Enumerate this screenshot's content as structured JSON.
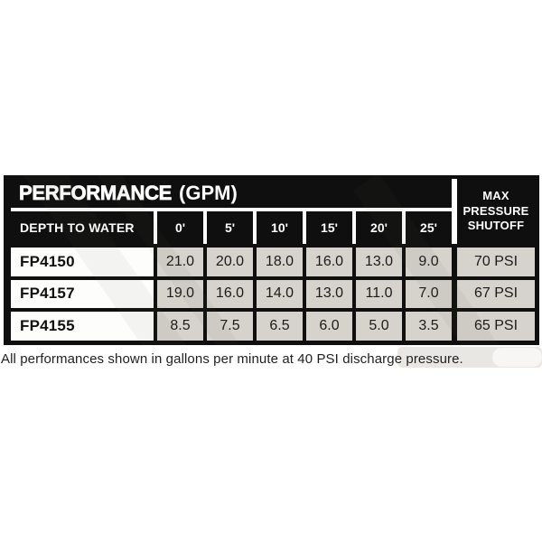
{
  "table": {
    "title": "PERFORMANCE",
    "title_suffix": "(GPM)",
    "row_header": "DEPTH TO WATER",
    "depths": [
      "0'",
      "5'",
      "10'",
      "15'",
      "20'",
      "25'"
    ],
    "max_header_lines": [
      "MAX",
      "PRESSURE",
      "SHUTOFF"
    ],
    "rows": [
      {
        "model": "FP4150",
        "values": [
          "21.0",
          "20.0",
          "18.0",
          "16.0",
          "13.0",
          "9.0"
        ],
        "max_psi": "70 PSI"
      },
      {
        "model": "FP4157",
        "values": [
          "19.0",
          "16.0",
          "14.0",
          "13.0",
          "11.0",
          "7.0"
        ],
        "max_psi": "67 PSI"
      },
      {
        "model": "FP4155",
        "values": [
          "8.5",
          "7.5",
          "6.5",
          "6.0",
          "5.0",
          "3.5"
        ],
        "max_psi": "65 PSI"
      }
    ]
  },
  "footnote": "All performances shown in gallons per minute at 40 PSI discharge pressure.",
  "colors": {
    "header_bg": "#0f0f0f",
    "header_text": "#ffffff",
    "cell_gray": "#d6d3cc",
    "cell_white": "#fdfdfc",
    "separator_white": "#ffffff"
  }
}
